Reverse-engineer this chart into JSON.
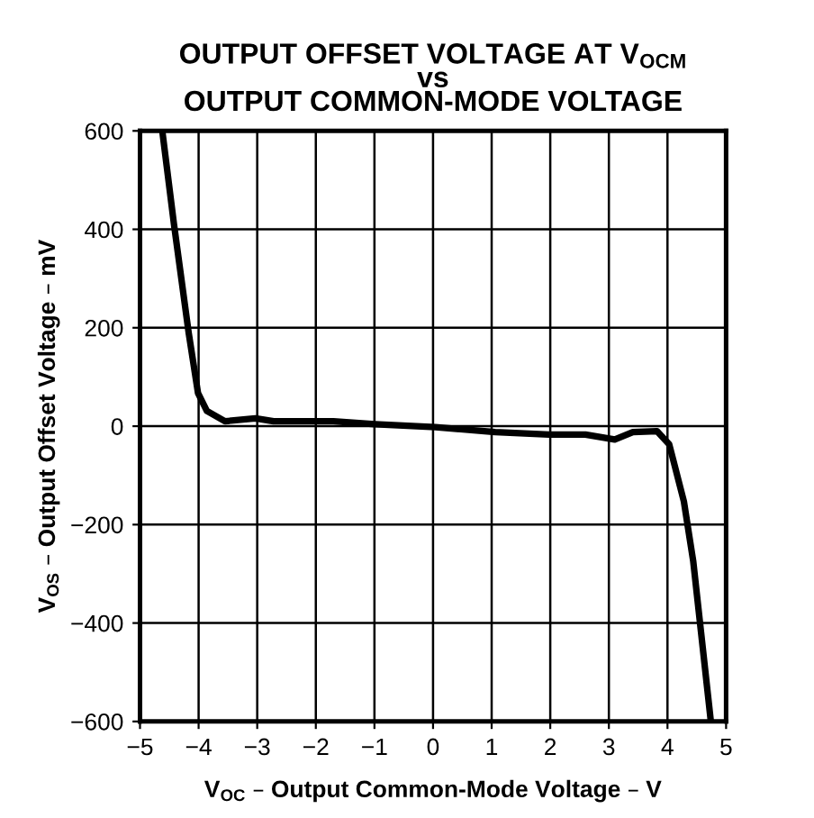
{
  "chart_data": {
    "type": "line",
    "title": "OUTPUT OFFSET VOLTAGE AT V$_{OCM}$\nvs\nOUTPUT COMMON-MODE VOLTAGE",
    "xlabel": "V$_{OC}$ – Output Common-Mode Voltage – V",
    "ylabel": "V$_{OS}$ – Output Offset Voltage – mV",
    "series": [
      {
        "color": "#000000",
        "x": [
          -4.62,
          -4.42,
          -4.17,
          -4.01,
          -3.86,
          -3.55,
          -3.03,
          -2.72,
          -1.7,
          -0.99,
          0.04,
          1.06,
          1.98,
          2.6,
          3.1,
          3.41,
          3.82,
          4.03,
          4.28,
          4.44,
          4.74
        ],
        "values": [
          600,
          410,
          190,
          67,
          31,
          10,
          16,
          10,
          10,
          4,
          -2,
          -12,
          -17,
          -17,
          -27,
          -12,
          -10,
          -37,
          -153,
          -275,
          -600
        ]
      }
    ],
    "xlim": [
      -5,
      5
    ],
    "ylim": [
      -600,
      600
    ],
    "xticks": [
      {
        "value": -5,
        "label": "−5"
      },
      {
        "value": -4,
        "label": "−4"
      },
      {
        "value": -3,
        "label": "−3"
      },
      {
        "value": -2,
        "label": "−2"
      },
      {
        "value": -1,
        "label": "−1"
      },
      0,
      1,
      2,
      3,
      4,
      5
    ],
    "yticks": [
      {
        "value": -600,
        "label": "−600"
      },
      {
        "value": -400,
        "label": "−400"
      },
      {
        "value": -200,
        "label": "−200"
      },
      0,
      200,
      400,
      600
    ],
    "grid": true,
    "line_style": "solid",
    "marker": "none"
  }
}
